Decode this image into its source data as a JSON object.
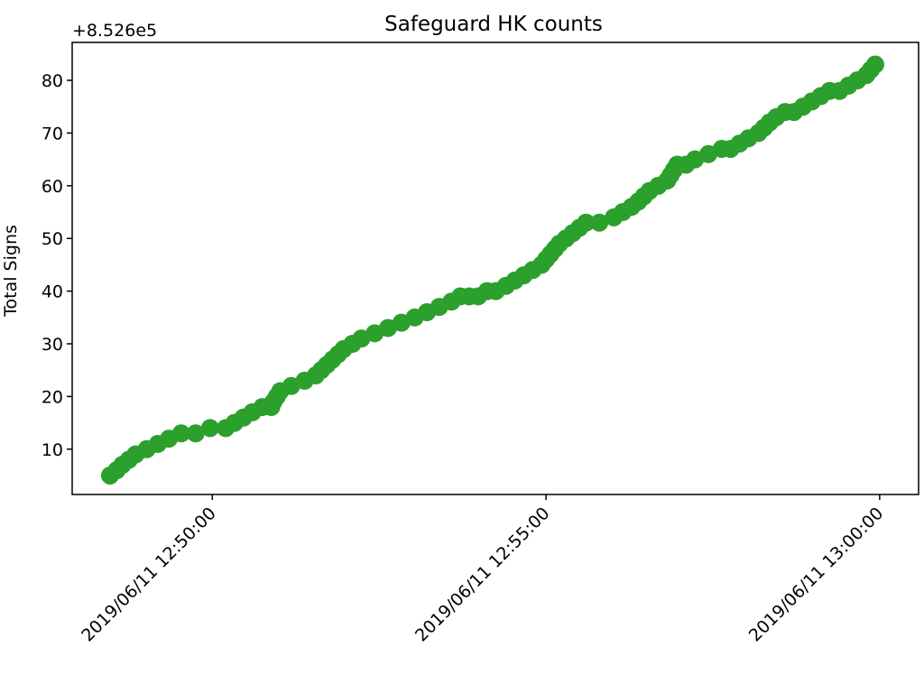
{
  "chart_data": {
    "type": "scatter",
    "title": "Safeguard HK counts",
    "y_label": "Total Signs",
    "y_offset_text": "+8.526e5",
    "x": [
      "2019/06/11 12:48:28",
      "2019/06/11 12:48:34",
      "2019/06/11 12:48:39",
      "2019/06/11 12:48:45",
      "2019/06/11 12:48:51",
      "2019/06/11 12:49:01",
      "2019/06/11 12:49:11",
      "2019/06/11 12:49:21",
      "2019/06/11 12:49:32",
      "2019/06/11 12:49:45",
      "2019/06/11 12:49:58",
      "2019/06/11 12:50:12",
      "2019/06/11 12:50:20",
      "2019/06/11 12:50:28",
      "2019/06/11 12:50:36",
      "2019/06/11 12:50:45",
      "2019/06/11 12:50:53",
      "2019/06/11 12:50:55",
      "2019/06/11 12:50:58",
      "2019/06/11 12:51:01",
      "2019/06/11 12:51:11",
      "2019/06/11 12:51:23",
      "2019/06/11 12:51:33",
      "2019/06/11 12:51:38",
      "2019/06/11 12:51:43",
      "2019/06/11 12:51:48",
      "2019/06/11 12:51:53",
      "2019/06/11 12:51:58",
      "2019/06/11 12:52:06",
      "2019/06/11 12:52:14",
      "2019/06/11 12:52:26",
      "2019/06/11 12:52:38",
      "2019/06/11 12:52:50",
      "2019/06/11 12:53:02",
      "2019/06/11 12:53:13",
      "2019/06/11 12:53:24",
      "2019/06/11 12:53:35",
      "2019/06/11 12:53:43",
      "2019/06/11 12:53:51",
      "2019/06/11 12:53:59",
      "2019/06/11 12:54:07",
      "2019/06/11 12:54:15",
      "2019/06/11 12:54:24",
      "2019/06/11 12:54:32",
      "2019/06/11 12:54:40",
      "2019/06/11 12:54:48",
      "2019/06/11 12:54:56",
      "2019/06/11 12:55:00",
      "2019/06/11 12:55:04",
      "2019/06/11 12:55:08",
      "2019/06/11 12:55:12",
      "2019/06/11 12:55:18",
      "2019/06/11 12:55:24",
      "2019/06/11 12:55:30",
      "2019/06/11 12:55:36",
      "2019/06/11 12:55:48",
      "2019/06/11 12:56:01",
      "2019/06/11 12:56:09",
      "2019/06/11 12:56:17",
      "2019/06/11 12:56:23",
      "2019/06/11 12:56:28",
      "2019/06/11 12:56:33",
      "2019/06/11 12:56:41",
      "2019/06/11 12:56:49",
      "2019/06/11 12:56:52",
      "2019/06/11 12:56:55",
      "2019/06/11 12:56:58",
      "2019/06/11 12:57:06",
      "2019/06/11 12:57:14",
      "2019/06/11 12:57:26",
      "2019/06/11 12:57:38",
      "2019/06/11 12:57:46",
      "2019/06/11 12:57:54",
      "2019/06/11 12:58:02",
      "2019/06/11 12:58:11",
      "2019/06/11 12:58:16",
      "2019/06/11 12:58:21",
      "2019/06/11 12:58:27",
      "2019/06/11 12:58:35",
      "2019/06/11 12:58:43",
      "2019/06/11 12:58:51",
      "2019/06/11 12:58:59",
      "2019/06/11 12:59:07",
      "2019/06/11 12:59:15",
      "2019/06/11 12:59:24",
      "2019/06/11 12:59:32",
      "2019/06/11 12:59:40",
      "2019/06/11 12:59:48",
      "2019/06/11 12:59:52",
      "2019/06/11 12:59:56"
    ],
    "values": [
      5,
      6,
      7,
      8,
      9,
      10,
      11,
      12,
      13,
      13,
      14,
      14,
      15,
      16,
      17,
      18,
      18,
      19,
      20,
      21,
      22,
      23,
      24,
      25,
      26,
      27,
      28,
      29,
      30,
      31,
      32,
      33,
      34,
      35,
      36,
      37,
      38,
      39,
      39,
      39,
      40,
      40,
      41,
      42,
      43,
      44,
      45,
      46,
      47,
      48,
      49,
      50,
      51,
      52,
      53,
      53,
      54,
      55,
      56,
      57,
      58,
      59,
      60,
      61,
      62,
      63,
      64,
      64,
      65,
      66,
      67,
      67,
      68,
      69,
      70,
      71,
      72,
      73,
      74,
      74,
      75,
      76,
      77,
      78,
      78,
      79,
      80,
      81,
      82,
      83
    ],
    "color": "#2ca02c",
    "xlim": [
      "2019/06/11 12:47:54",
      "2019/06/11 13:00:35"
    ],
    "xticks": [
      "2019/06/11 12:50:00",
      "2019/06/11 12:55:00",
      "2019/06/11 13:00:00"
    ],
    "ylim": [
      1.4,
      87.2
    ],
    "yticks": [
      10,
      20,
      30,
      40,
      50,
      60,
      70,
      80
    ],
    "grid": false
  }
}
